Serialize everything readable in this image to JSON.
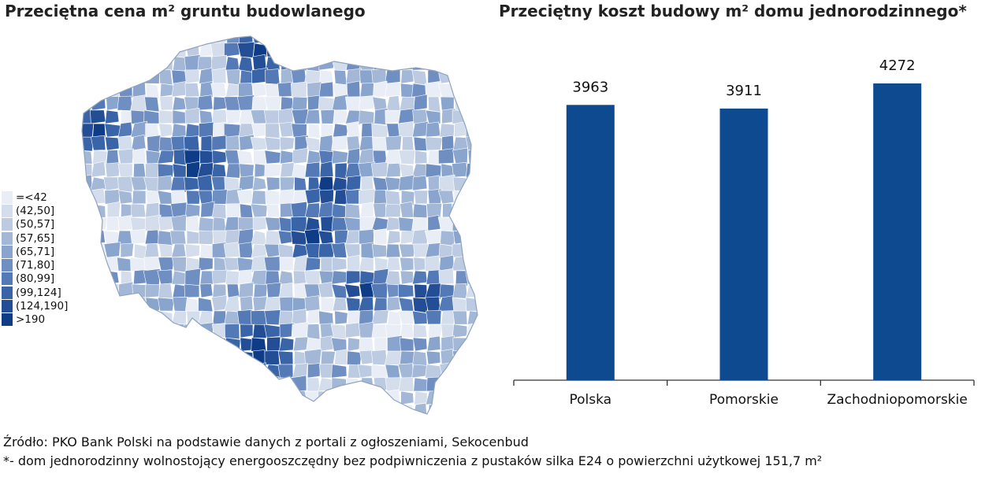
{
  "map": {
    "title": "Przeciętna cena m² gruntu budowlanego",
    "legend": [
      {
        "label": "=<42",
        "color": "#e9eef6"
      },
      {
        "label": "(42,50]",
        "color": "#d3ddeb"
      },
      {
        "label": "(50,57]",
        "color": "#bccbe1"
      },
      {
        "label": "(57,65]",
        "color": "#a3b8d7"
      },
      {
        "label": "(65,71]",
        "color": "#8aa5cd"
      },
      {
        "label": "(71,80]",
        "color": "#6f8fc2"
      },
      {
        "label": "(80,99]",
        "color": "#537ab7"
      },
      {
        "label": "(99,124]",
        "color": "#3a64a8"
      },
      {
        "label": "(124,190]",
        "color": "#234e96"
      },
      {
        "label": ">190",
        "color": "#0f3c86"
      }
    ]
  },
  "chart_data": {
    "type": "bar",
    "title": "Przeciętny koszt budowy m² domu jednorodzinnego*",
    "categories": [
      "Polska",
      "Pomorskie",
      "Zachodniopomorskie"
    ],
    "values": [
      3963,
      3911,
      4272
    ],
    "value_labels": [
      "3963",
      "3911",
      "4272"
    ],
    "bar_color": "#0d4a8f",
    "xlabel": "",
    "ylabel": "",
    "grid": false,
    "legend": "none"
  },
  "footer": {
    "source": "Źródło: PKO Bank Polski na podstawie danych z portali z ogłoszeniami, Sekocenbud",
    "note": "*- dom jednorodzinny wolnostojący energooszczędny bez podpiwniczenia z pustaków silka E24 o powierzchni użytkowej 151,7 m²"
  }
}
